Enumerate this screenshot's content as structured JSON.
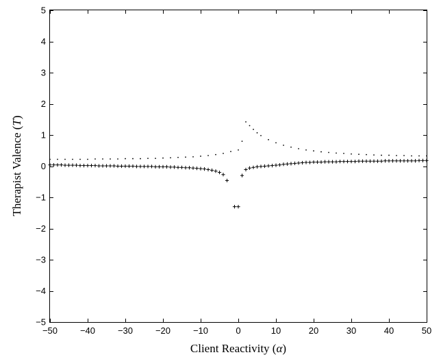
{
  "chart_data": {
    "type": "scatter",
    "title": "",
    "xlabel": "Client Reactivity (α)",
    "ylabel": "Therapist Valence (T)",
    "xlim": [
      -50,
      50
    ],
    "ylim": [
      -5,
      5
    ],
    "xticks": [
      -50,
      -40,
      -30,
      -20,
      -10,
      0,
      10,
      20,
      30,
      40,
      50
    ],
    "yticks": [
      -5,
      -4,
      -3,
      -2,
      -1,
      0,
      1,
      2,
      3,
      4,
      5
    ],
    "grid": false,
    "legend": "none",
    "series": [
      {
        "marker": "dot",
        "x": [
          -50,
          -48,
          -46,
          -44,
          -42,
          -40,
          -38,
          -36,
          -34,
          -32,
          -30,
          -28,
          -26,
          -24,
          -22,
          -20,
          -18,
          -16,
          -14,
          -12,
          -10,
          -8,
          -6,
          -4,
          -2,
          0,
          1,
          2,
          3,
          4,
          5,
          6,
          8,
          10,
          12,
          14,
          16,
          18,
          20,
          22,
          24,
          26,
          28,
          30,
          32,
          34,
          36,
          38,
          40,
          42,
          44,
          46,
          48,
          50
        ],
        "y": [
          0.22,
          0.22,
          0.22,
          0.22,
          0.22,
          0.22,
          0.23,
          0.23,
          0.23,
          0.23,
          0.24,
          0.24,
          0.24,
          0.25,
          0.25,
          0.26,
          0.27,
          0.28,
          0.29,
          0.3,
          0.32,
          0.34,
          0.37,
          0.41,
          0.47,
          0.52,
          0.8,
          1.42,
          1.3,
          1.18,
          1.07,
          0.98,
          0.85,
          0.75,
          0.67,
          0.61,
          0.56,
          0.52,
          0.49,
          0.46,
          0.44,
          0.42,
          0.41,
          0.39,
          0.38,
          0.37,
          0.36,
          0.35,
          0.35,
          0.34,
          0.34,
          0.33,
          0.33,
          0.33
        ]
      },
      {
        "marker": "plus",
        "x": [
          -50,
          -49,
          -48,
          -47,
          -46,
          -45,
          -44,
          -43,
          -42,
          -41,
          -40,
          -39,
          -38,
          -37,
          -36,
          -35,
          -34,
          -33,
          -32,
          -31,
          -30,
          -29,
          -28,
          -27,
          -26,
          -25,
          -24,
          -23,
          -22,
          -21,
          -20,
          -19,
          -18,
          -17,
          -16,
          -15,
          -14,
          -13,
          -12,
          -11,
          -10,
          -9,
          -8,
          -7,
          -6,
          -5,
          -4,
          -3,
          -2,
          -1,
          0,
          1,
          2,
          3,
          4,
          5,
          6,
          7,
          8,
          9,
          10,
          11,
          12,
          13,
          14,
          15,
          16,
          17,
          18,
          19,
          20,
          21,
          22,
          23,
          24,
          25,
          26,
          27,
          28,
          29,
          30,
          31,
          32,
          33,
          34,
          35,
          36,
          37,
          38,
          39,
          40,
          41,
          42,
          43,
          44,
          45,
          46,
          47,
          48,
          49,
          50
        ],
        "y": [
          0.04,
          0.04,
          0.04,
          0.04,
          0.03,
          0.03,
          0.03,
          0.03,
          0.02,
          0.02,
          0.02,
          0.02,
          0.02,
          0.01,
          0.01,
          0.01,
          0.01,
          0.01,
          0.0,
          0.0,
          0.0,
          0.0,
          0.0,
          -0.01,
          -0.01,
          -0.01,
          -0.01,
          -0.01,
          -0.02,
          -0.02,
          -0.02,
          -0.02,
          -0.03,
          -0.03,
          -0.04,
          -0.04,
          -0.05,
          -0.05,
          -0.06,
          -0.07,
          -0.08,
          -0.09,
          -0.11,
          -0.13,
          -0.16,
          -0.2,
          -0.27,
          -0.46,
          null,
          -1.3,
          -1.3,
          -0.3,
          -0.11,
          -0.06,
          -0.04,
          -0.02,
          -0.01,
          0.0,
          0.01,
          0.02,
          0.03,
          0.04,
          0.06,
          0.07,
          0.08,
          0.09,
          0.1,
          0.11,
          0.12,
          0.12,
          0.13,
          0.13,
          0.13,
          0.14,
          0.14,
          0.14,
          0.14,
          0.15,
          0.15,
          0.15,
          0.15,
          0.15,
          0.16,
          0.16,
          0.16,
          0.16,
          0.16,
          0.16,
          0.16,
          0.17,
          0.17,
          0.17,
          0.17,
          0.17,
          0.17,
          0.17,
          0.17,
          0.17,
          0.18,
          0.18,
          0.18
        ]
      }
    ]
  }
}
